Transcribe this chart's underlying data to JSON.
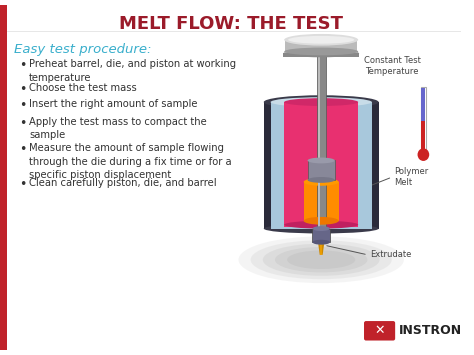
{
  "title": "MELT FLOW: THE TEST",
  "title_color": "#9B1B2A",
  "bg_color": "#FFFFFF",
  "left_bar_color": "#C0222A",
  "subtitle": "Easy test procedure:",
  "subtitle_color": "#3AAFCC",
  "bullet_points": [
    "Preheat barrel, die, and piston at working\ntemperature",
    "Choose the test mass",
    "Insert the right amount of sample",
    "Apply the test mass to compact the\nsample",
    "Measure the amount of sample flowing\nthrough the die during a fix time or for a\nspecific piston displacement",
    "Clean carefully piston, die, and barrel"
  ],
  "label_constant_temp": "Constant Test\nTemperature",
  "label_polymer_melt": "Polymer\nMelt",
  "label_extrudate": "Extrudate",
  "label_color": "#444444",
  "instron_text": "INSTRON",
  "instron_red": "#C0222A",
  "outer_barrel_color": "#2A2A3A",
  "blue_insulation_color": "#A8C8DC",
  "pink_inner_color": "#E83070",
  "rod_color": "#888888",
  "disc_color": "#AAAAAA",
  "disc_top_color": "#CCCCCC",
  "nozzle_color": "#666688",
  "shadow_color": "#AAAAAA",
  "melt_color": "#FF8C00",
  "extrudate_color": "#CC8800",
  "therm_red": "#CC2222",
  "therm_blue": "#6666CC"
}
